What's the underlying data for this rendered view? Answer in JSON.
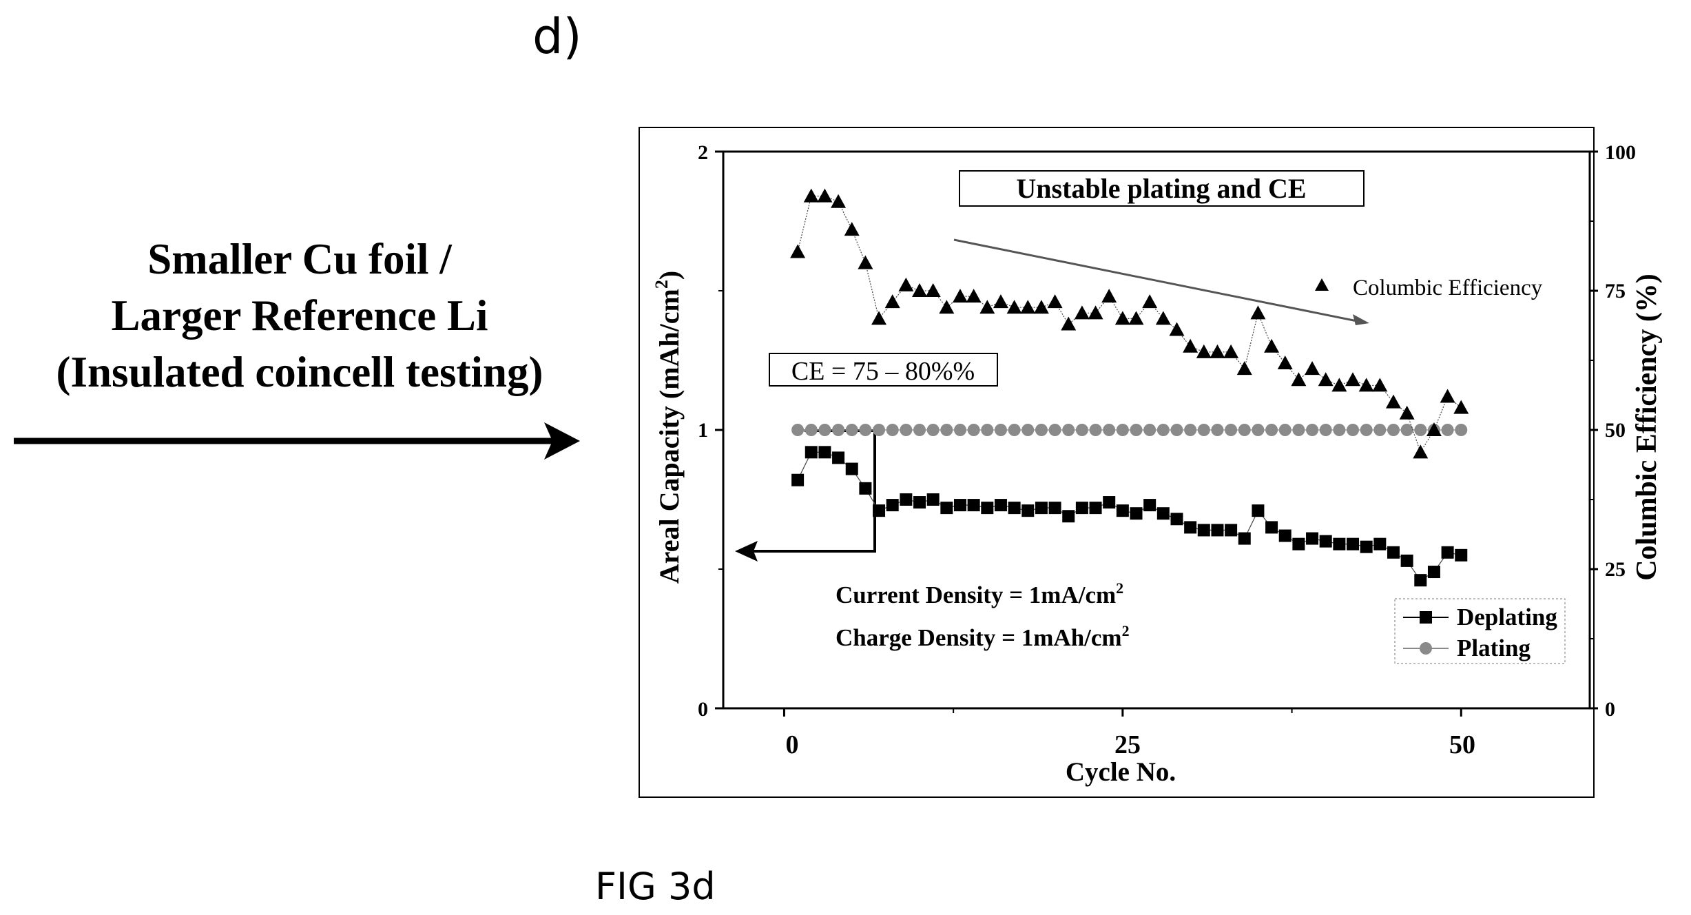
{
  "panel_label": "d)",
  "left_annotation": {
    "lines": [
      "Smaller Cu foil /",
      "Larger Reference Li",
      "(Insulated coincell testing)"
    ]
  },
  "figure_caption": "FIG 3d",
  "colors": {
    "foreground": "#000000",
    "plating": "#8a8a8a",
    "background": "#ffffff"
  },
  "chart_data": {
    "type": "scatter",
    "title": "",
    "xlabel": "Cycle No.",
    "ylabel_left_main": "Areal Capacity (mAh/cm",
    "ylabel_left_sup": "2",
    "ylabel_left_close": ")",
    "ylabel_right": "Columbic Efficiency (%)",
    "xlim": [
      -4.5,
      59.5
    ],
    "ylim_left": [
      0,
      2
    ],
    "ylim_right": [
      0,
      100
    ],
    "xticks": [
      0,
      25,
      50
    ],
    "yticks_left": [
      0,
      1,
      2
    ],
    "yticks_right": [
      0,
      25,
      50,
      75,
      100
    ],
    "grid": false,
    "annotations": {
      "unstable": "Unstable plating and CE",
      "ce_range": "CE = 75 – 80%%",
      "current_density": "Current Density = 1mA/cm",
      "charge_density": "Charge Density = 1mAh/cm",
      "superscript": "2"
    },
    "legend_right_ce": "Columbic Efficiency",
    "legend_bottom": [
      "Deplating",
      "Plating"
    ],
    "series": [
      {
        "name": "Columbic Efficiency",
        "axis": "right",
        "marker": "triangle",
        "x": [
          1,
          2,
          3,
          4,
          5,
          6,
          7,
          8,
          9,
          10,
          11,
          12,
          13,
          14,
          15,
          16,
          17,
          18,
          19,
          20,
          21,
          22,
          23,
          24,
          25,
          26,
          27,
          28,
          29,
          30,
          31,
          32,
          33,
          34,
          35,
          36,
          37,
          38,
          39,
          40,
          41,
          42,
          43,
          44,
          45,
          46,
          47,
          48,
          49,
          50
        ],
        "values": [
          82,
          92,
          92,
          91,
          86,
          80,
          70,
          73,
          76,
          75,
          75,
          72,
          74,
          74,
          72,
          73,
          72,
          72,
          72,
          73,
          69,
          71,
          71,
          74,
          70,
          70,
          73,
          70,
          68,
          65,
          64,
          64,
          64,
          61,
          71,
          65,
          62,
          59,
          61,
          59,
          58,
          59,
          58,
          58,
          55,
          53,
          46,
          50,
          56,
          54
        ]
      },
      {
        "name": "Deplating",
        "axis": "left",
        "marker": "square",
        "x": [
          1,
          2,
          3,
          4,
          5,
          6,
          7,
          8,
          9,
          10,
          11,
          12,
          13,
          14,
          15,
          16,
          17,
          18,
          19,
          20,
          21,
          22,
          23,
          24,
          25,
          26,
          27,
          28,
          29,
          30,
          31,
          32,
          33,
          34,
          35,
          36,
          37,
          38,
          39,
          40,
          41,
          42,
          43,
          44,
          45,
          46,
          47,
          48,
          49,
          50
        ],
        "values": [
          0.82,
          0.92,
          0.92,
          0.9,
          0.86,
          0.79,
          0.71,
          0.73,
          0.75,
          0.74,
          0.75,
          0.72,
          0.73,
          0.73,
          0.72,
          0.73,
          0.72,
          0.71,
          0.72,
          0.72,
          0.69,
          0.72,
          0.72,
          0.74,
          0.71,
          0.7,
          0.73,
          0.7,
          0.68,
          0.65,
          0.64,
          0.64,
          0.64,
          0.61,
          0.71,
          0.65,
          0.62,
          0.59,
          0.61,
          0.6,
          0.59,
          0.59,
          0.58,
          0.59,
          0.56,
          0.53,
          0.46,
          0.49,
          0.56,
          0.55
        ]
      },
      {
        "name": "Plating",
        "axis": "left",
        "marker": "circle",
        "x": [
          1,
          2,
          3,
          4,
          5,
          6,
          7,
          8,
          9,
          10,
          11,
          12,
          13,
          14,
          15,
          16,
          17,
          18,
          19,
          20,
          21,
          22,
          23,
          24,
          25,
          26,
          27,
          28,
          29,
          30,
          31,
          32,
          33,
          34,
          35,
          36,
          37,
          38,
          39,
          40,
          41,
          42,
          43,
          44,
          45,
          46,
          47,
          48,
          49,
          50
        ],
        "values": [
          1,
          1,
          1,
          1,
          1,
          1,
          1,
          1,
          1,
          1,
          1,
          1,
          1,
          1,
          1,
          1,
          1,
          1,
          1,
          1,
          1,
          1,
          1,
          1,
          1,
          1,
          1,
          1,
          1,
          1,
          1,
          1,
          1,
          1,
          1,
          1,
          1,
          1,
          1,
          1,
          1,
          1,
          1,
          1,
          1,
          1,
          1,
          1,
          1,
          1
        ]
      }
    ]
  }
}
